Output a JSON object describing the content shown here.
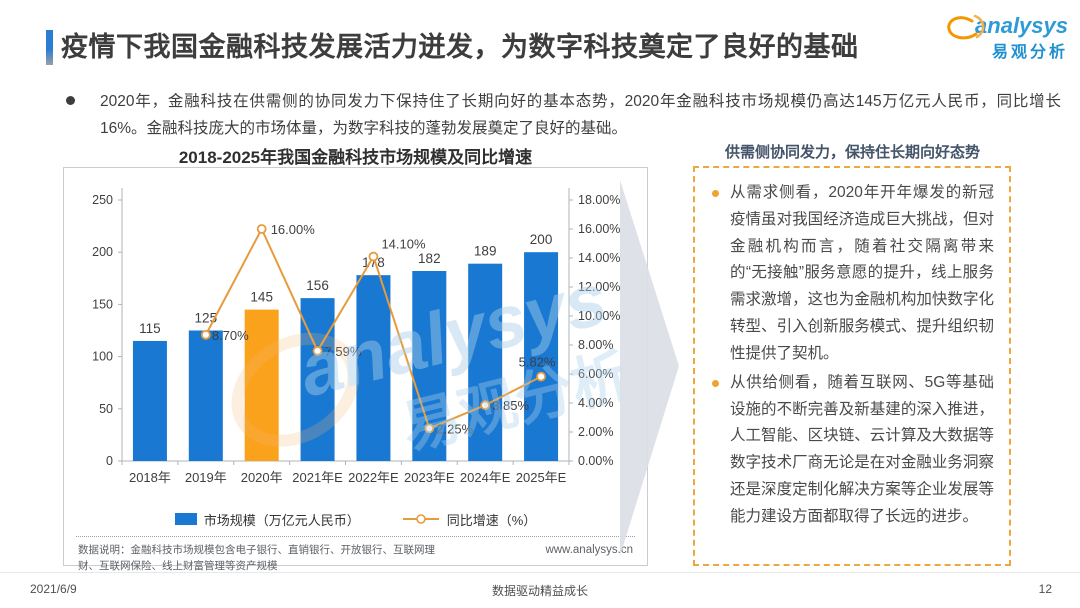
{
  "header": {
    "title": "疫情下我国金融科技发展活力迸发，为数字科技奠定了良好的基础",
    "logo": {
      "brand": "analysys",
      "brand_cn": "易观分析"
    }
  },
  "summary": {
    "bullet": "2020年，金融科技在供需侧的协同发力下保持住了长期向好的基本态势，2020年金融科技市场规模仍高达145万亿元人民币，同比增长16%。金融科技庞大的市场体量，为数字科技的蓬勃发展奠定了良好的基础。"
  },
  "chart_data": {
    "type": "combo-bar-line",
    "title": "2018-2025年我国金融科技市场规模及同比增速",
    "categories": [
      "2018年",
      "2019年",
      "2020年",
      "2021年E",
      "2022年E",
      "2023年E",
      "2024年E",
      "2025年E"
    ],
    "series": [
      {
        "name": "市场规模（万亿元人民币）",
        "type": "bar",
        "values": [
          115,
          125,
          145,
          156,
          178,
          182,
          189,
          200
        ],
        "color": "#1878D2",
        "highlight_index": 2,
        "highlight_color": "#FAA21B",
        "axis": "left"
      },
      {
        "name": "同比增速（%）",
        "type": "line",
        "values": [
          null,
          8.7,
          16.0,
          7.59,
          14.1,
          2.25,
          3.85,
          5.82
        ],
        "labels": [
          "",
          "8.70%",
          "16.00%",
          "7.59%",
          "14.10%",
          "2.25%",
          "3.85%",
          "5.82%"
        ],
        "color": "#E79B3C",
        "axis": "right"
      }
    ],
    "left_axis": {
      "min": 0,
      "max": 250,
      "step": 50
    },
    "right_axis": {
      "min": 0,
      "max": 18,
      "step": 2,
      "decimals": 2,
      "suffix": "%"
    },
    "grid": false,
    "legend_position": "bottom"
  },
  "chart_footer": {
    "note": "数据说明：金融科技市场规模包含电子银行、直销银行、开放银行、互联网理财、互联网保险、线上财富管理等资产规模",
    "website": "www.analysys.cn"
  },
  "watermark": {
    "brand": "analysys",
    "brand_cn": "易观分析"
  },
  "right_panel": {
    "heading": "供需侧协同发力，保持住长期向好态势",
    "bullets": [
      "从需求侧看，2020年开年爆发的新冠疫情虽对我国经济造成巨大挑战，但对金融机构而言，随着社交隔离带来的“无接触”服务意愿的提升，线上服务需求激增，这也为金融机构加快数字化转型、引入创新服务模式、提升组织韧性提供了契机。",
      "从供给侧看，随着互联网、5G等基础设施的不断完善及新基建的深入推进，人工智能、区块链、云计算及大数据等数字技术厂商无论是在对金融业务洞察还是深度定制化解决方案等企业发展等能力建设方面都取得了长远的进步。"
    ]
  },
  "footer": {
    "date": "2021/6/9",
    "center": "数据驱动精益成长",
    "page": "12"
  },
  "colors": {
    "accent_blue": "#2B7CD3",
    "bar_blue": "#1878D2",
    "bar_highlight_orange": "#FAA21B",
    "line_orange": "#E79B3C",
    "panel_border_orange": "#EDA73C",
    "brand_blue": "#2E9BD6",
    "watermark_blue": "#A9CFE9",
    "arrow_gray": "#DADFE5"
  }
}
